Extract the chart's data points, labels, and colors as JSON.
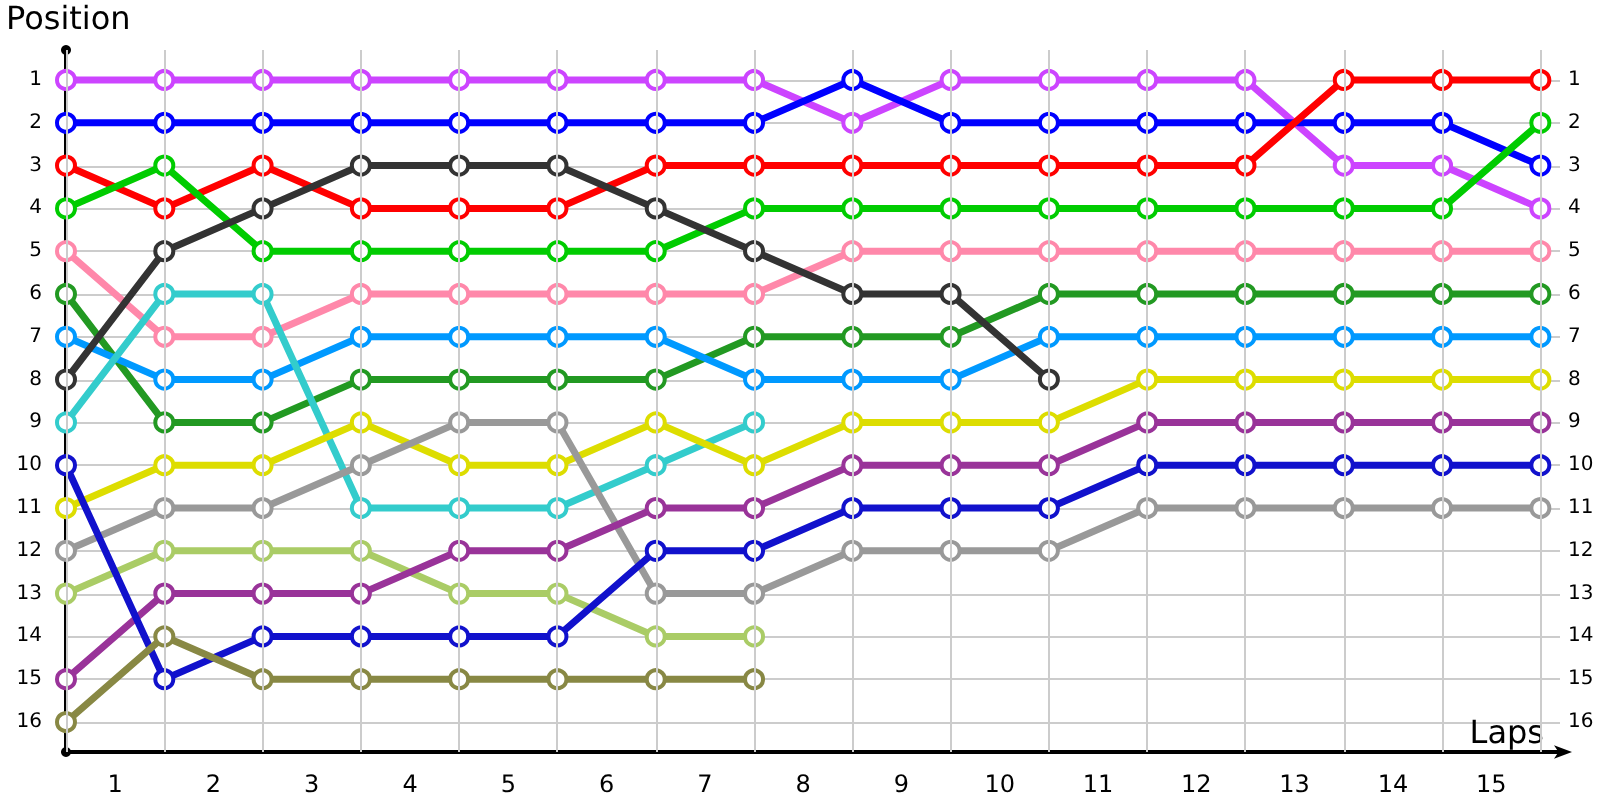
{
  "chart_data": {
    "type": "line",
    "xlabel": "Laps",
    "ylabel": "Position",
    "grid": true,
    "marker": "circle",
    "line_style": "solid",
    "x": [
      0,
      1,
      2,
      3,
      4,
      5,
      6,
      7,
      8,
      9,
      10,
      11,
      12,
      13,
      14,
      15
    ],
    "xlim": [
      0,
      15.2
    ],
    "xticks": [
      {
        "value": 0,
        "label": null
      },
      {
        "value": 0.5,
        "label": "1"
      },
      {
        "value": 1,
        "label": null
      },
      {
        "value": 1.5,
        "label": "2"
      },
      {
        "value": 2,
        "label": null
      },
      {
        "value": 2.5,
        "label": "3"
      },
      {
        "value": 3,
        "label": null
      },
      {
        "value": 3.5,
        "label": "4"
      },
      {
        "value": 4,
        "label": null
      },
      {
        "value": 4.5,
        "label": "5"
      },
      {
        "value": 5,
        "label": null
      },
      {
        "value": 5.5,
        "label": "6"
      },
      {
        "value": 6,
        "label": null
      },
      {
        "value": 6.5,
        "label": "7"
      },
      {
        "value": 7,
        "label": null
      },
      {
        "value": 7.5,
        "label": "8"
      },
      {
        "value": 8,
        "label": null
      },
      {
        "value": 8.5,
        "label": "9"
      },
      {
        "value": 9,
        "label": null
      },
      {
        "value": 9.5,
        "label": "10"
      },
      {
        "value": 10,
        "label": null
      },
      {
        "value": 10.5,
        "label": "11"
      },
      {
        "value": 11,
        "label": null
      },
      {
        "value": 11.5,
        "label": "12"
      },
      {
        "value": 12,
        "label": null
      },
      {
        "value": 12.5,
        "label": "13"
      },
      {
        "value": 13,
        "label": null
      },
      {
        "value": 13.5,
        "label": "14"
      },
      {
        "value": 14,
        "label": null
      },
      {
        "value": 14.5,
        "label": "15"
      },
      {
        "value": 15,
        "label": null
      }
    ],
    "ylim": [
      16.7,
      0.3
    ],
    "yticks": [
      1,
      2,
      3,
      4,
      5,
      6,
      7,
      8,
      9,
      10,
      11,
      12,
      13,
      14,
      15,
      16
    ],
    "y2lim": [
      16.7,
      0.3
    ],
    "y2ticks": [
      1,
      2,
      3,
      4,
      5,
      6,
      7,
      8,
      9,
      10,
      11,
      12,
      13,
      14,
      15,
      16
    ],
    "series": [
      {
        "color": "#cc44ff",
        "values": [
          1,
          1,
          1,
          1,
          1,
          1,
          1,
          1,
          2,
          1,
          1,
          1,
          1,
          3,
          3,
          4
        ]
      },
      {
        "color": "#0000ff",
        "values": [
          2,
          2,
          2,
          2,
          2,
          2,
          2,
          2,
          1,
          2,
          2,
          2,
          2,
          2,
          2,
          3
        ]
      },
      {
        "color": "#ff0000",
        "values": [
          3,
          4,
          3,
          4,
          4,
          4,
          3,
          3,
          3,
          3,
          3,
          3,
          3,
          1,
          1,
          1
        ]
      },
      {
        "color": "#00cc00",
        "values": [
          4,
          3,
          5,
          5,
          5,
          5,
          5,
          4,
          4,
          4,
          4,
          4,
          4,
          4,
          4,
          2
        ]
      },
      {
        "color": "#ff88aa",
        "values": [
          5,
          7,
          7,
          6,
          6,
          6,
          6,
          6,
          5,
          5,
          5,
          5,
          5,
          5,
          5,
          5
        ]
      },
      {
        "color": "#229922",
        "values": [
          6,
          9,
          9,
          8,
          8,
          8,
          8,
          7,
          7,
          7,
          6,
          6,
          6,
          6,
          6,
          6
        ]
      },
      {
        "color": "#0099ff",
        "values": [
          7,
          8,
          8,
          7,
          7,
          7,
          7,
          8,
          8,
          8,
          7,
          7,
          7,
          7,
          7,
          7
        ]
      },
      {
        "color": "#333333",
        "values": [
          8,
          5,
          4,
          3,
          3,
          3,
          4,
          5,
          6,
          6,
          8,
          null,
          null,
          null,
          null,
          null
        ]
      },
      {
        "color": "#33cccc",
        "values": [
          9,
          6,
          6,
          11,
          11,
          11,
          10,
          9,
          null,
          null,
          null,
          null,
          null,
          null,
          null,
          null
        ]
      },
      {
        "color": "#dddd00",
        "values": [
          11,
          10,
          10,
          9,
          10,
          10,
          9,
          10,
          9,
          9,
          9,
          8,
          8,
          8,
          8,
          8
        ]
      },
      {
        "color": "#999999",
        "values": [
          12,
          11,
          11,
          10,
          9,
          9,
          13,
          13,
          12,
          12,
          12,
          11,
          11,
          11,
          11,
          11
        ]
      },
      {
        "color": "#aacc66",
        "values": [
          13,
          12,
          12,
          12,
          13,
          13,
          14,
          14,
          null,
          null,
          null,
          null,
          null,
          null,
          null,
          null
        ]
      },
      {
        "color": "#993399",
        "values": [
          15,
          13,
          13,
          13,
          12,
          12,
          11,
          11,
          10,
          10,
          10,
          9,
          9,
          9,
          9,
          9
        ]
      },
      {
        "color": "#1111cc",
        "values": [
          10,
          15,
          14,
          14,
          14,
          14,
          12,
          12,
          11,
          11,
          11,
          10,
          10,
          10,
          10,
          10
        ]
      },
      {
        "color": "#888844",
        "values": [
          16,
          14,
          15,
          15,
          15,
          15,
          15,
          15,
          null,
          null,
          null,
          null,
          null,
          null,
          null,
          null
        ]
      }
    ]
  }
}
